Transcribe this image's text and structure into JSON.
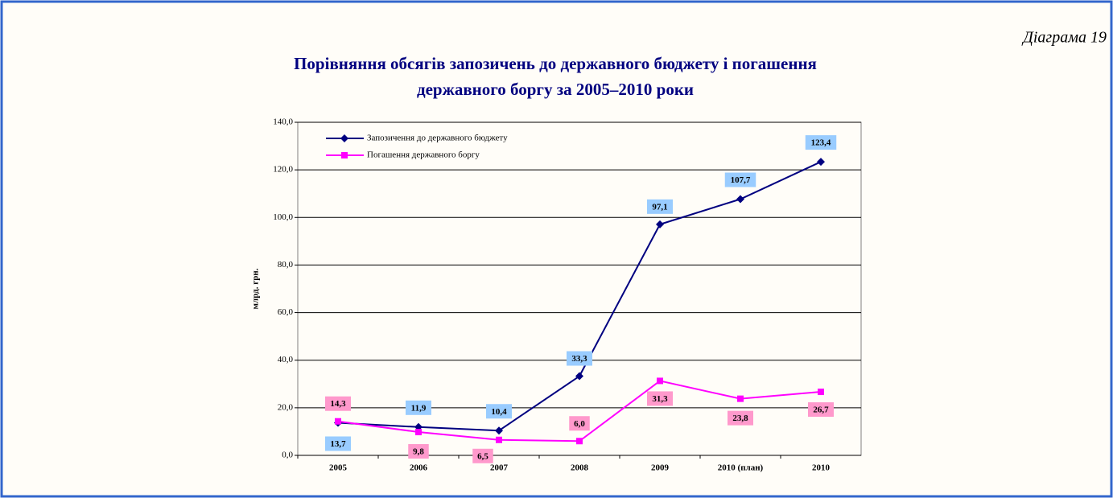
{
  "chart_data": {
    "type": "line",
    "annotation": "Діаграма 19",
    "title": [
      "Порівняння обсягів запозичень до державного бюджету і погашення",
      "державного боргу за 2005–2010 роки"
    ],
    "y_label": "млрд. грн.",
    "categories": [
      "2005",
      "2006",
      "2007",
      "2008",
      "2009",
      "2010 (план)",
      "2010"
    ],
    "series": [
      {
        "name": "Запозичення до державного бюджету",
        "color": "#000080",
        "marker": "diamond",
        "label_color": "#99ccff",
        "values": [
          13.7,
          11.9,
          10.4,
          33.3,
          97.1,
          107.7,
          123.4
        ],
        "value_labels": [
          "13,7",
          "11,9",
          "10,4",
          "33,3",
          "97,1",
          "107,7",
          "123,4"
        ]
      },
      {
        "name": "Погашення державного боргу",
        "color": "#ff00ff",
        "marker": "square",
        "label_color": "#ff99cc",
        "values": [
          14.3,
          9.8,
          6.5,
          6.0,
          31.3,
          23.8,
          26.7
        ],
        "value_labels": [
          "14,3",
          "9,8",
          "6,5",
          "6,0",
          "31,3",
          "23,8",
          "26,7"
        ]
      }
    ],
    "ylim": [
      0,
      140
    ],
    "yticks": [
      {
        "value": 0,
        "label": "0,0"
      },
      {
        "value": 20,
        "label": "20,0"
      },
      {
        "value": 40,
        "label": "40,0"
      },
      {
        "value": 60,
        "label": "60,0"
      },
      {
        "value": 80,
        "label": "80,0"
      },
      {
        "value": 100,
        "label": "100,0"
      },
      {
        "value": 120,
        "label": "120,0"
      },
      {
        "value": 140,
        "label": "140,0"
      }
    ],
    "grid": true,
    "legend": "top-left"
  }
}
